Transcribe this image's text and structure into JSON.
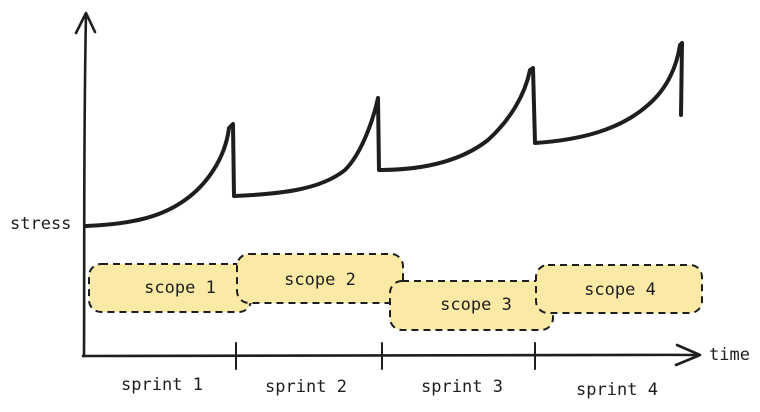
{
  "axes": {
    "y_label": "stress",
    "x_label": "time"
  },
  "scopes": [
    {
      "label": "scope 1",
      "color": "#fbe9a6"
    },
    {
      "label": "scope 2",
      "color": "#fbe9a6"
    },
    {
      "label": "scope 3",
      "color": "#fbe9a6"
    },
    {
      "label": "scope 4",
      "color": "#fbe9a6"
    }
  ],
  "sprints": [
    {
      "label": "sprint 1"
    },
    {
      "label": "sprint 2"
    },
    {
      "label": "sprint 3"
    },
    {
      "label": "sprint 4"
    }
  ],
  "colors": {
    "ink": "#1e1e1e",
    "scope_fill": "#fbe9a6"
  }
}
